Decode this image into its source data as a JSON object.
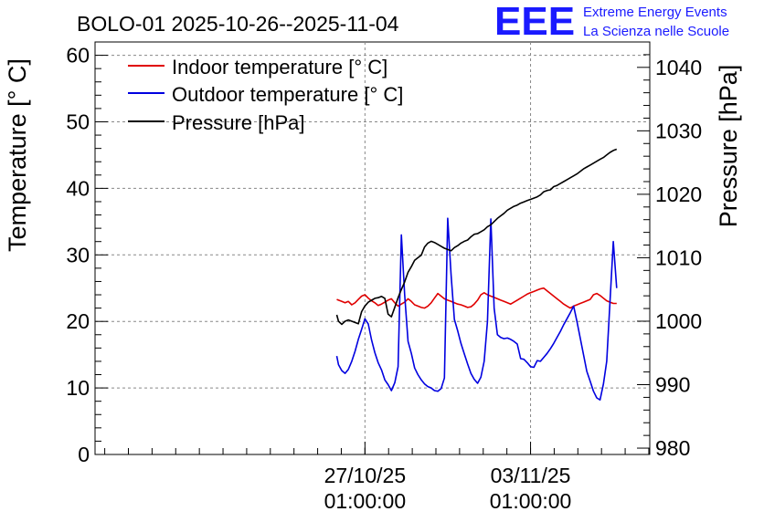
{
  "colors": {
    "indoor": "#e00000",
    "outdoor": "#0000e0",
    "pressure": "#000000",
    "logo": "#1a1aff"
  },
  "chart_data": {
    "type": "line",
    "title": "BOLO-01 2025-10-26--2025-11-04",
    "ylabel": "Temperature [° C]",
    "y2label": "Pressure [hPa]",
    "ylim": [
      0,
      62
    ],
    "y2lim": [
      979,
      1044
    ],
    "yticks": [
      "0",
      "10",
      "20",
      "30",
      "40",
      "50",
      "60"
    ],
    "y2ticks": [
      "980",
      "990",
      "1000",
      "1010",
      "1020",
      "1030",
      "1040"
    ],
    "xlim": [
      -1.63,
      1.72
    ],
    "xticks": [
      {
        "value": 0,
        "label_date": "27/10/25",
        "label_time": "01:00:00"
      },
      {
        "value": 1,
        "label_date": "03/11/25",
        "label_time": "01:00:00"
      }
    ],
    "legend": {
      "position": "top-left",
      "entries": [
        {
          "key": "indoor",
          "label": "Indoor temperature [° C]"
        },
        {
          "key": "outdoor",
          "label": "Outdoor temperature [° C]"
        },
        {
          "key": "pressure",
          "label": "Pressure [hPa]"
        }
      ]
    },
    "series": [
      {
        "key": "indoor",
        "name": "Indoor temperature [° C]",
        "axis": "left",
        "x": [
          -0.17,
          -0.16,
          -0.14,
          -0.12,
          -0.1,
          -0.08,
          -0.06,
          -0.04,
          -0.02,
          0.0,
          0.02,
          0.04,
          0.06,
          0.08,
          0.1,
          0.12,
          0.14,
          0.16,
          0.18,
          0.2,
          0.22,
          0.24,
          0.26,
          0.28,
          0.3,
          0.32,
          0.34,
          0.36,
          0.38,
          0.4,
          0.42,
          0.44,
          0.46,
          0.48,
          0.5,
          0.52,
          0.54,
          0.56,
          0.58,
          0.6,
          0.62,
          0.64,
          0.66,
          0.68,
          0.7,
          0.72,
          0.74,
          0.76,
          0.78,
          0.8,
          0.82,
          0.84,
          0.86,
          0.88,
          0.9,
          0.92,
          0.94,
          0.96,
          0.98,
          1.0,
          1.02,
          1.04,
          1.06,
          1.08,
          1.1,
          1.12,
          1.14,
          1.16,
          1.18,
          1.2,
          1.22,
          1.24,
          1.26,
          1.28,
          1.3,
          1.32,
          1.34,
          1.36,
          1.38,
          1.4,
          1.42,
          1.44,
          1.46,
          1.48,
          1.5,
          1.52
        ],
        "y": [
          23.3,
          23.2,
          23.0,
          22.8,
          23.0,
          22.5,
          22.8,
          23.3,
          23.8,
          24.0,
          23.5,
          23.1,
          22.8,
          22.4,
          22.6,
          22.9,
          23.2,
          23.4,
          22.8,
          22.3,
          22.6,
          22.9,
          23.4,
          23.0,
          22.5,
          22.3,
          22.1,
          22.0,
          22.3,
          22.8,
          23.5,
          24.2,
          23.8,
          23.4,
          23.2,
          23.0,
          22.8,
          22.6,
          22.5,
          22.3,
          22.1,
          22.2,
          22.6,
          23.2,
          24.0,
          24.3,
          24.0,
          23.8,
          23.6,
          23.4,
          23.2,
          23.0,
          22.8,
          22.6,
          22.9,
          23.2,
          23.5,
          23.8,
          24.1,
          24.3,
          24.5,
          24.7,
          24.9,
          25.0,
          24.6,
          24.2,
          23.8,
          23.4,
          23.0,
          22.6,
          22.3,
          22.0,
          22.3,
          22.5,
          22.7,
          22.9,
          23.1,
          23.3,
          24.0,
          24.2,
          23.9,
          23.5,
          23.1,
          22.9,
          22.7,
          22.7
        ]
      },
      {
        "key": "outdoor",
        "name": "Outdoor temperature [° C]",
        "axis": "left",
        "x": [
          -0.17,
          -0.16,
          -0.14,
          -0.12,
          -0.1,
          -0.08,
          -0.06,
          -0.04,
          -0.02,
          0.0,
          0.02,
          0.04,
          0.06,
          0.08,
          0.1,
          0.12,
          0.14,
          0.16,
          0.18,
          0.2,
          0.22,
          0.24,
          0.26,
          0.28,
          0.3,
          0.32,
          0.34,
          0.36,
          0.38,
          0.4,
          0.42,
          0.44,
          0.46,
          0.48,
          0.5,
          0.52,
          0.54,
          0.56,
          0.58,
          0.6,
          0.62,
          0.64,
          0.66,
          0.68,
          0.7,
          0.72,
          0.74,
          0.76,
          0.78,
          0.8,
          0.82,
          0.84,
          0.86,
          0.88,
          0.9,
          0.92,
          0.94,
          0.96,
          0.98,
          1.0,
          1.02,
          1.04,
          1.06,
          1.08,
          1.1,
          1.12,
          1.14,
          1.16,
          1.18,
          1.2,
          1.22,
          1.24,
          1.26,
          1.28,
          1.3,
          1.32,
          1.34,
          1.36,
          1.38,
          1.4,
          1.42,
          1.44,
          1.46,
          1.48,
          1.5,
          1.52
        ],
        "y": [
          14.8,
          13.5,
          12.6,
          12.2,
          12.8,
          14.0,
          15.5,
          17.3,
          18.8,
          20.4,
          19.6,
          17.2,
          15.3,
          13.8,
          12.7,
          11.2,
          10.5,
          9.6,
          10.8,
          13.2,
          33.0,
          24.0,
          17.0,
          15.2,
          13.0,
          12.0,
          11.2,
          10.6,
          10.2,
          10.0,
          9.6,
          9.5,
          9.9,
          11.5,
          35.5,
          27.0,
          20.3,
          18.6,
          16.7,
          15.1,
          13.6,
          12.2,
          11.3,
          10.7,
          11.6,
          14.0,
          20.0,
          35.4,
          22.0,
          18.0,
          17.6,
          17.4,
          17.5,
          17.3,
          17.0,
          16.6,
          14.4,
          14.3,
          13.8,
          13.2,
          13.1,
          14.1,
          14.0,
          14.6,
          15.2,
          15.9,
          16.7,
          17.6,
          18.5,
          19.5,
          20.4,
          21.3,
          22.3,
          20.0,
          17.5,
          15.0,
          12.5,
          11.0,
          9.5,
          8.5,
          8.2,
          10.6,
          14.0,
          23.0,
          32.0,
          25.0
        ]
      },
      {
        "key": "pressure",
        "name": "Pressure [hPa]",
        "axis": "right",
        "x": [
          -0.17,
          -0.16,
          -0.14,
          -0.12,
          -0.1,
          -0.08,
          -0.06,
          -0.04,
          -0.02,
          0.0,
          0.02,
          0.04,
          0.06,
          0.08,
          0.1,
          0.12,
          0.14,
          0.16,
          0.18,
          0.2,
          0.22,
          0.24,
          0.26,
          0.28,
          0.3,
          0.32,
          0.34,
          0.36,
          0.38,
          0.4,
          0.42,
          0.44,
          0.46,
          0.48,
          0.5,
          0.52,
          0.54,
          0.56,
          0.58,
          0.6,
          0.62,
          0.64,
          0.66,
          0.68,
          0.7,
          0.72,
          0.74,
          0.76,
          0.78,
          0.8,
          0.82,
          0.84,
          0.86,
          0.88,
          0.9,
          0.92,
          0.94,
          0.96,
          0.98,
          1.0,
          1.02,
          1.04,
          1.06,
          1.08,
          1.1,
          1.12,
          1.14,
          1.16,
          1.18,
          1.2,
          1.22,
          1.24,
          1.26,
          1.28,
          1.3,
          1.32,
          1.34,
          1.36,
          1.38,
          1.4,
          1.42,
          1.44,
          1.46,
          1.48,
          1.5,
          1.52
        ],
        "y": [
          1001.0,
          1000.0,
          999.5,
          1000.0,
          1000.2,
          1000.0,
          999.8,
          999.6,
          1001.5,
          1002.4,
          1003.0,
          1003.3,
          1003.6,
          1003.7,
          1003.9,
          1003.6,
          1001.1,
          1000.7,
          1002.2,
          1003.7,
          1005.0,
          1006.2,
          1007.7,
          1008.6,
          1009.6,
          1010.0,
          1010.4,
          1011.7,
          1012.3,
          1012.6,
          1012.4,
          1012.1,
          1011.8,
          1011.5,
          1011.3,
          1011.1,
          1011.6,
          1011.9,
          1012.3,
          1012.6,
          1012.8,
          1013.3,
          1013.7,
          1013.8,
          1014.1,
          1014.4,
          1014.9,
          1015.2,
          1015.7,
          1016.2,
          1016.6,
          1017.0,
          1017.5,
          1017.8,
          1018.1,
          1018.3,
          1018.6,
          1018.8,
          1019.0,
          1019.2,
          1019.4,
          1019.6,
          1019.9,
          1020.4,
          1020.6,
          1020.7,
          1021.2,
          1021.4,
          1021.7,
          1022.0,
          1022.3,
          1022.6,
          1022.9,
          1023.2,
          1023.6,
          1024.0,
          1024.3,
          1024.6,
          1024.9,
          1025.2,
          1025.5,
          1025.8,
          1026.2,
          1026.6,
          1026.9,
          1027.1
        ]
      }
    ]
  },
  "logo": {
    "mark": "EEE",
    "line1": "Extreme Energy Events",
    "line2": "La Scienza nelle Scuole"
  }
}
